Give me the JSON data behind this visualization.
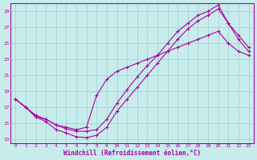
{
  "xlabel": "Windchill (Refroidissement éolien,°C)",
  "xlim": [
    -0.5,
    23.5
  ],
  "ylim": [
    12.5,
    30.0
  ],
  "xticks": [
    0,
    1,
    2,
    3,
    4,
    5,
    6,
    7,
    8,
    9,
    10,
    11,
    12,
    13,
    14,
    15,
    16,
    17,
    18,
    19,
    20,
    21,
    22,
    23
  ],
  "yticks": [
    13,
    15,
    17,
    19,
    21,
    23,
    25,
    27,
    29
  ],
  "bg_color": "#c8ecec",
  "grid_color": "#9ecece",
  "line_color": "#aa00aa",
  "line1_x": [
    0,
    1,
    2,
    3,
    4,
    5,
    6,
    7,
    8,
    9,
    10,
    11,
    12,
    13,
    14,
    15,
    16,
    17,
    18,
    19,
    20,
    21,
    22,
    23
  ],
  "line1_y": [
    18.0,
    17.0,
    15.8,
    15.2,
    14.2,
    13.8,
    13.3,
    13.2,
    13.5,
    14.5,
    16.5,
    18.0,
    19.5,
    21.0,
    22.5,
    24.0,
    25.5,
    26.8,
    27.8,
    28.5,
    29.3,
    27.5,
    25.5,
    24.0
  ],
  "line2_x": [
    0,
    1,
    2,
    3,
    4,
    5,
    6,
    7,
    8,
    9,
    10,
    11,
    12,
    13,
    14,
    15,
    16,
    17,
    18,
    19,
    20,
    21,
    22,
    23
  ],
  "line2_y": [
    18.0,
    17.0,
    16.0,
    15.5,
    14.8,
    14.3,
    14.0,
    14.0,
    14.2,
    15.5,
    17.5,
    19.2,
    20.8,
    22.2,
    23.5,
    25.0,
    26.5,
    27.5,
    28.5,
    29.0,
    29.8,
    27.5,
    26.0,
    24.5
  ],
  "line3_x": [
    0,
    1,
    2,
    3,
    4,
    5,
    6,
    7,
    8,
    9,
    10,
    11,
    12,
    13,
    14,
    15,
    16,
    17,
    18,
    19,
    20,
    21,
    22,
    23
  ],
  "line3_y": [
    18.0,
    17.0,
    15.8,
    15.5,
    14.8,
    14.5,
    14.2,
    14.5,
    18.5,
    20.5,
    21.5,
    22.0,
    22.5,
    23.0,
    23.5,
    24.0,
    24.5,
    25.0,
    25.5,
    26.0,
    26.5,
    25.0,
    24.0,
    23.5
  ]
}
